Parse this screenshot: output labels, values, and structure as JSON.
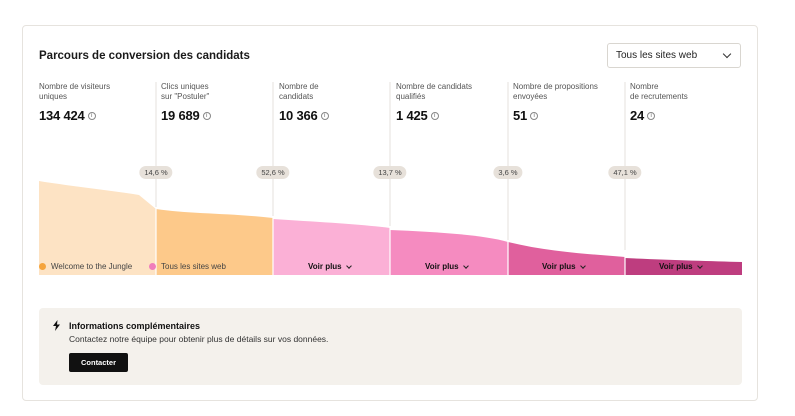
{
  "card": {
    "title": "Parcours de conversion des candidats",
    "filter_selected": "Tous les sites web"
  },
  "funnel": {
    "columns": [
      {
        "label_line1": "Nombre de visiteurs",
        "label_line2": "uniques",
        "value": "134 424"
      },
      {
        "label_line1": "Clics uniques",
        "label_line2": "sur \"Postuler\"",
        "value": "19 689"
      },
      {
        "label_line1": "Nombre de",
        "label_line2": "candidats",
        "value": "10 366"
      },
      {
        "label_line1": "Nombre de candidats",
        "label_line2": "qualifiés",
        "value": "1 425"
      },
      {
        "label_line1": "Nombre de propositions",
        "label_line2": "envoyées",
        "value": "51"
      },
      {
        "label_line1": "Nombre",
        "label_line2": "de recrutements",
        "value": "24"
      }
    ],
    "conversion_rates": [
      "14,6 %",
      "52,6 %",
      "13,7 %",
      "3,6 %",
      "47,1 %"
    ],
    "segment_colors": [
      "#fde3c4",
      "#fdc98a",
      "#fbb0d6",
      "#f58bc0",
      "#e0609d",
      "#be3d7f"
    ]
  },
  "legend": {
    "items": [
      {
        "label": "Welcome to the Jungle",
        "color": "#f5a43c"
      },
      {
        "label": "Tous les sites web",
        "color": "#f07dbb"
      }
    ],
    "voir_plus_label": "Voir plus"
  },
  "info": {
    "title": "Informations complémentaires",
    "description": "Contactez notre équipe pour obtenir plus de détails sur vos données.",
    "button_label": "Contacter"
  }
}
